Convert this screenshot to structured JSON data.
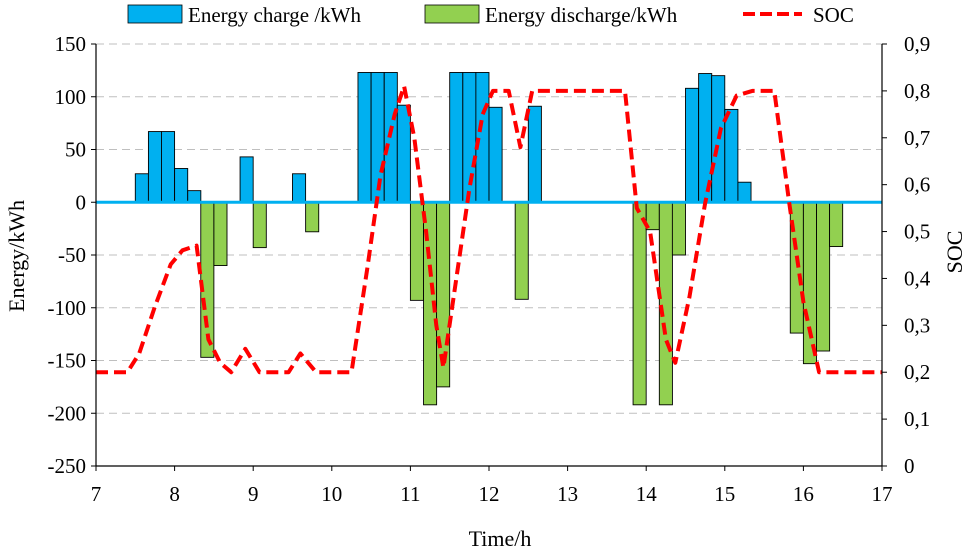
{
  "chart_data": {
    "type": "bar",
    "xlabel": "Time/h",
    "ylabel": "Energy/kWh",
    "y2label": "SOC",
    "xlim": [
      7,
      17
    ],
    "ylim": [
      -250,
      150
    ],
    "y2lim": [
      0,
      0.9
    ],
    "xticks": [
      "7",
      "8",
      "9",
      "10",
      "11",
      "12",
      "13",
      "14",
      "15",
      "16",
      "17"
    ],
    "yticks": [
      "150",
      "100",
      "50",
      "0",
      "-50",
      "-100",
      "-150",
      "-200",
      "-250"
    ],
    "y2ticks": [
      "0,9",
      "0,8",
      "0,7",
      "0,6",
      "0,5",
      "0,4",
      "0,3",
      "0,2",
      "0,1",
      "0"
    ],
    "grid": "horizontal dashed",
    "legend": "top",
    "bar_width": 0.1667,
    "series": [
      {
        "name": "Energy charge /kWh",
        "kind": "bar",
        "color": "#00b0f0",
        "points": [
          {
            "x": 7.5,
            "y": 27
          },
          {
            "x": 7.667,
            "y": 67
          },
          {
            "x": 7.833,
            "y": 67
          },
          {
            "x": 8.0,
            "y": 32
          },
          {
            "x": 8.167,
            "y": 11
          },
          {
            "x": 8.833,
            "y": 43
          },
          {
            "x": 9.5,
            "y": 27
          },
          {
            "x": 10.333,
            "y": 123
          },
          {
            "x": 10.5,
            "y": 123
          },
          {
            "x": 10.667,
            "y": 123
          },
          {
            "x": 10.833,
            "y": 92
          },
          {
            "x": 11.5,
            "y": 123
          },
          {
            "x": 11.667,
            "y": 123
          },
          {
            "x": 11.833,
            "y": 123
          },
          {
            "x": 12.0,
            "y": 90
          },
          {
            "x": 12.5,
            "y": 91
          },
          {
            "x": 14.5,
            "y": 108
          },
          {
            "x": 14.667,
            "y": 122
          },
          {
            "x": 14.833,
            "y": 120
          },
          {
            "x": 15.0,
            "y": 88
          },
          {
            "x": 15.167,
            "y": 19
          }
        ]
      },
      {
        "name": "Energy discharge/kWh",
        "kind": "bar",
        "color": "#92d050",
        "points": [
          {
            "x": 8.333,
            "y": -147
          },
          {
            "x": 8.5,
            "y": -60
          },
          {
            "x": 9.0,
            "y": -43
          },
          {
            "x": 9.667,
            "y": -28
          },
          {
            "x": 11.0,
            "y": -93
          },
          {
            "x": 11.167,
            "y": -192
          },
          {
            "x": 11.333,
            "y": -175
          },
          {
            "x": 12.333,
            "y": -92
          },
          {
            "x": 13.833,
            "y": -192
          },
          {
            "x": 14.0,
            "y": -26
          },
          {
            "x": 14.167,
            "y": -192
          },
          {
            "x": 14.333,
            "y": -50
          },
          {
            "x": 15.833,
            "y": -124
          },
          {
            "x": 16.0,
            "y": -153
          },
          {
            "x": 16.167,
            "y": -141
          },
          {
            "x": 16.333,
            "y": -42
          }
        ]
      },
      {
        "name": "SOC",
        "kind": "line",
        "axis": "right",
        "color": "#ff0000",
        "points": [
          {
            "x": 7.0,
            "y": 0.2
          },
          {
            "x": 7.4,
            "y": 0.2
          },
          {
            "x": 7.55,
            "y": 0.24
          },
          {
            "x": 7.75,
            "y": 0.34
          },
          {
            "x": 7.95,
            "y": 0.43
          },
          {
            "x": 8.1,
            "y": 0.46
          },
          {
            "x": 8.28,
            "y": 0.47
          },
          {
            "x": 8.43,
            "y": 0.27
          },
          {
            "x": 8.58,
            "y": 0.22
          },
          {
            "x": 8.72,
            "y": 0.2
          },
          {
            "x": 8.9,
            "y": 0.25
          },
          {
            "x": 9.08,
            "y": 0.2
          },
          {
            "x": 9.45,
            "y": 0.2
          },
          {
            "x": 9.6,
            "y": 0.24
          },
          {
            "x": 9.8,
            "y": 0.2
          },
          {
            "x": 10.25,
            "y": 0.2
          },
          {
            "x": 10.45,
            "y": 0.42
          },
          {
            "x": 10.62,
            "y": 0.62
          },
          {
            "x": 10.8,
            "y": 0.75
          },
          {
            "x": 10.92,
            "y": 0.81
          },
          {
            "x": 11.05,
            "y": 0.7
          },
          {
            "x": 11.2,
            "y": 0.5
          },
          {
            "x": 11.33,
            "y": 0.3
          },
          {
            "x": 11.42,
            "y": 0.21
          },
          {
            "x": 11.55,
            "y": 0.36
          },
          {
            "x": 11.75,
            "y": 0.59
          },
          {
            "x": 11.92,
            "y": 0.75
          },
          {
            "x": 12.05,
            "y": 0.8
          },
          {
            "x": 12.25,
            "y": 0.8
          },
          {
            "x": 12.4,
            "y": 0.68
          },
          {
            "x": 12.55,
            "y": 0.8
          },
          {
            "x": 13.73,
            "y": 0.8
          },
          {
            "x": 13.88,
            "y": 0.55
          },
          {
            "x": 14.05,
            "y": 0.5
          },
          {
            "x": 14.25,
            "y": 0.27
          },
          {
            "x": 14.37,
            "y": 0.22
          },
          {
            "x": 14.55,
            "y": 0.36
          },
          {
            "x": 14.75,
            "y": 0.56
          },
          {
            "x": 14.95,
            "y": 0.72
          },
          {
            "x": 15.15,
            "y": 0.79
          },
          {
            "x": 15.35,
            "y": 0.8
          },
          {
            "x": 15.63,
            "y": 0.8
          },
          {
            "x": 15.82,
            "y": 0.56
          },
          {
            "x": 16.0,
            "y": 0.35
          },
          {
            "x": 16.2,
            "y": 0.2
          },
          {
            "x": 17.0,
            "y": 0.2
          }
        ]
      }
    ]
  }
}
